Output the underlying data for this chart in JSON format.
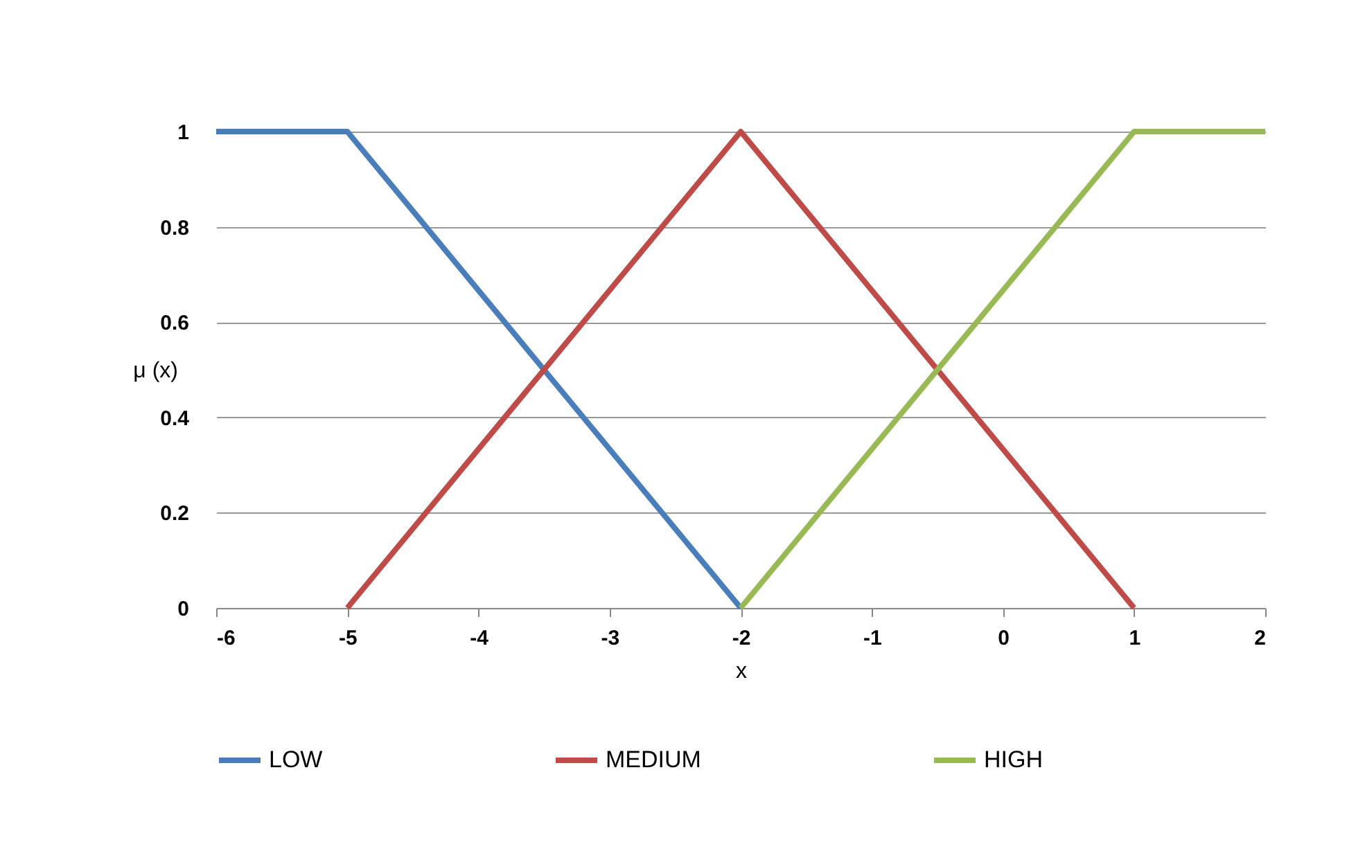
{
  "chart_data": {
    "type": "line",
    "xlabel": "x",
    "ylabel": "μ (x)",
    "xlim": [
      -6,
      2
    ],
    "xticks": [
      -6,
      -5,
      -4,
      -3,
      -2,
      -1,
      0,
      1,
      2
    ],
    "ylim": [
      0,
      1
    ],
    "yticks": [
      0,
      0.2,
      0.4,
      0.6,
      0.8,
      1
    ],
    "grid": "y",
    "legend": "bottom",
    "marker": "none",
    "line_style": "solid",
    "series": [
      {
        "name": "LOW",
        "color": "#4a7ebb",
        "x": [
          -6,
          -5,
          -2
        ],
        "values": [
          1,
          1,
          0
        ]
      },
      {
        "name": "MEDIUM",
        "color": "#be4b48",
        "x": [
          -5,
          -2,
          1
        ],
        "values": [
          0,
          1,
          0
        ]
      },
      {
        "name": "HIGH",
        "color": "#98b954",
        "x": [
          -2,
          1,
          2
        ],
        "values": [
          0,
          1,
          1
        ]
      }
    ]
  }
}
